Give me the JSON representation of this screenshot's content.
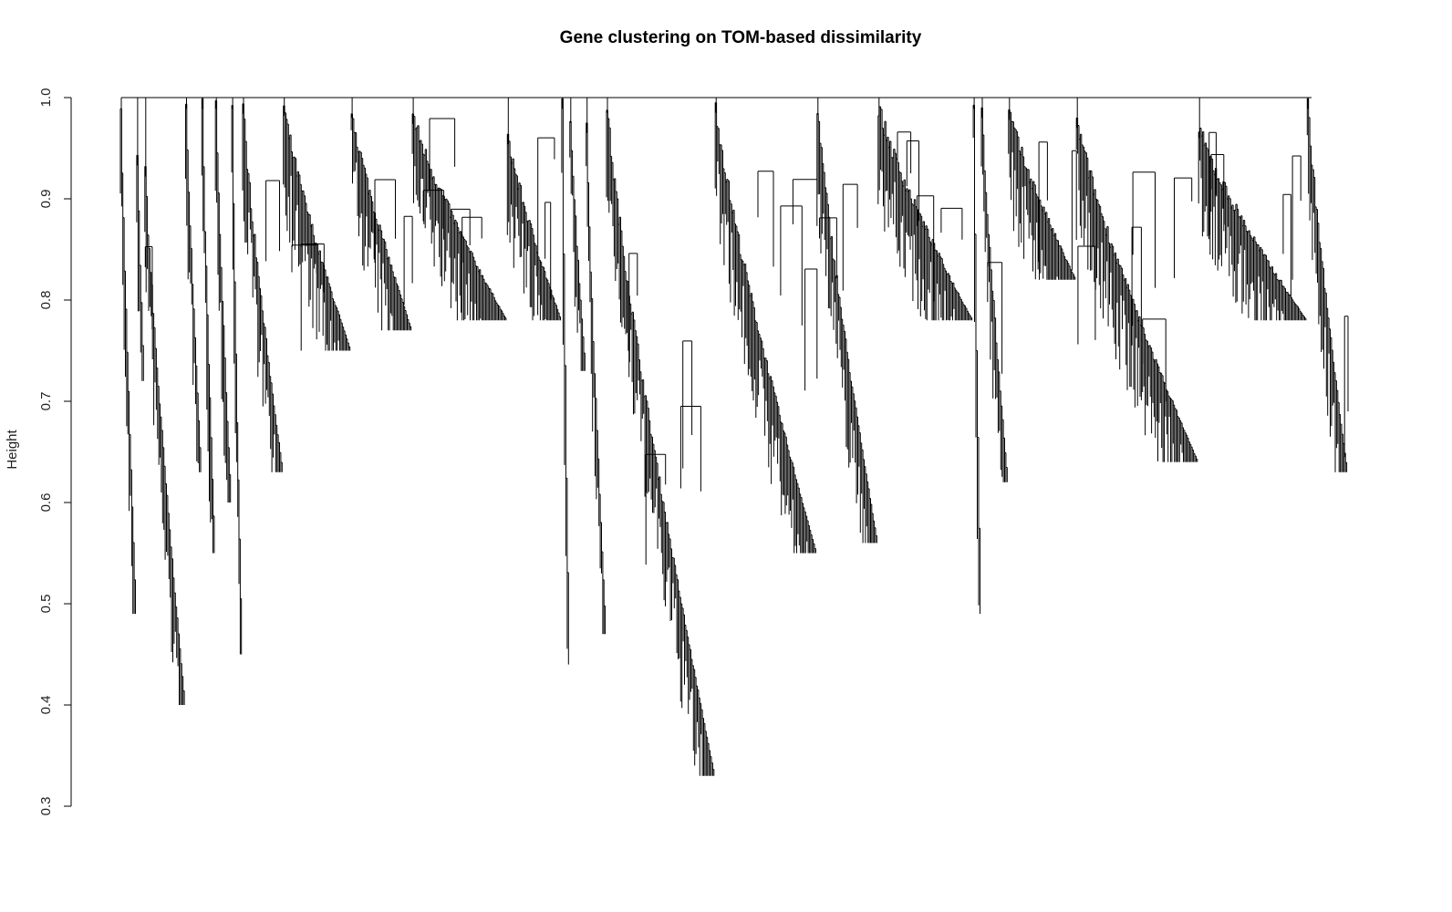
{
  "chart_data": {
    "type": "dendrogram",
    "title": "Gene clustering on TOM-based dissimilarity",
    "xlabel": "",
    "ylabel": "Height",
    "ylim": [
      0.3,
      1.0
    ],
    "y_ticks": [
      "0.3",
      "0.4",
      "0.5",
      "0.6",
      "0.7",
      "0.8",
      "0.9",
      "1.0"
    ],
    "grid": false,
    "legend": "none",
    "colors": {
      "line": "#000000",
      "background": "#ffffff"
    },
    "clusters": [
      {
        "merge": 0.999,
        "min": 0.49,
        "width": 0.012
      },
      {
        "merge": 0.943,
        "min": 0.72,
        "width": 0.006
      },
      {
        "merge": 0.932,
        "min": 0.4,
        "width": 0.03
      },
      {
        "merge": 0.999,
        "min": 0.63,
        "width": 0.012
      },
      {
        "merge": 0.999,
        "min": 0.55,
        "width": 0.01
      },
      {
        "merge": 0.999,
        "min": 0.6,
        "width": 0.012
      },
      {
        "merge": 0.999,
        "min": 0.45,
        "width": 0.008
      },
      {
        "merge": 0.994,
        "min": 0.63,
        "width": 0.03
      },
      {
        "merge": 0.992,
        "min": 0.75,
        "width": 0.05
      },
      {
        "merge": 0.99,
        "min": 0.77,
        "width": 0.045
      },
      {
        "merge": 0.984,
        "min": 0.78,
        "width": 0.07
      },
      {
        "merge": 0.964,
        "min": 0.78,
        "width": 0.04
      },
      {
        "merge": 0.999,
        "min": 0.44,
        "width": 0.006
      },
      {
        "merge": 0.985,
        "min": 0.73,
        "width": 0.012
      },
      {
        "merge": 0.975,
        "min": 0.47,
        "width": 0.015
      },
      {
        "merge": 0.995,
        "min": 0.33,
        "width": 0.08
      },
      {
        "merge": 0.995,
        "min": 0.55,
        "width": 0.075
      },
      {
        "merge": 0.993,
        "min": 0.56,
        "width": 0.045
      },
      {
        "merge": 0.992,
        "min": 0.78,
        "width": 0.07
      },
      {
        "merge": 0.999,
        "min": 0.49,
        "width": 0.006
      },
      {
        "merge": 0.99,
        "min": 0.62,
        "width": 0.02
      },
      {
        "merge": 0.988,
        "min": 0.82,
        "width": 0.05
      },
      {
        "merge": 0.98,
        "min": 0.64,
        "width": 0.09
      },
      {
        "merge": 0.97,
        "min": 0.78,
        "width": 0.08
      },
      {
        "merge": 0.999,
        "min": 0.63,
        "width": 0.03
      }
    ]
  }
}
